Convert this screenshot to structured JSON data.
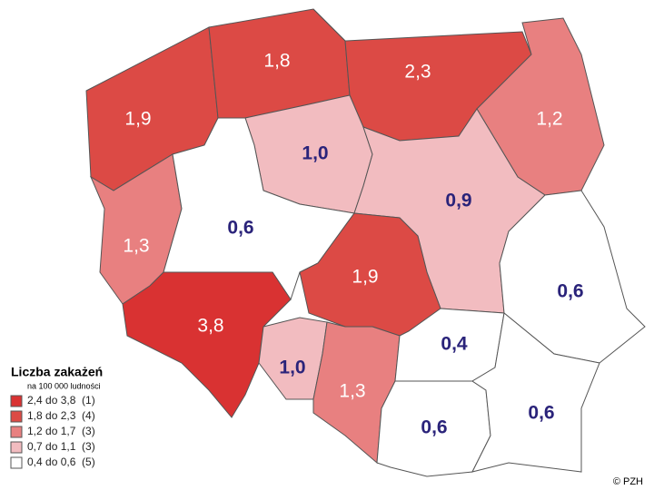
{
  "map": {
    "regions": [
      {
        "label": "1,9",
        "color": "#dc4a45"
      },
      {
        "label": "1,8",
        "color": "#dc4a45"
      },
      {
        "label": "2,3",
        "color": "#dc4a45"
      },
      {
        "label": "1,2",
        "color": "#e88080"
      },
      {
        "label": "1,0",
        "color": "#f2bcc0"
      },
      {
        "label": "0,9",
        "color": "#f2bcc0"
      },
      {
        "label": "1,3",
        "color": "#e88080"
      },
      {
        "label": "0,6",
        "color": "#ffffff"
      },
      {
        "label": "1,9",
        "color": "#dc4a45"
      },
      {
        "label": "0,6",
        "color": "#ffffff"
      },
      {
        "label": "3,8",
        "color": "#d93232"
      },
      {
        "label": "1,0",
        "color": "#f2bcc0"
      },
      {
        "label": "1,3",
        "color": "#e88080"
      },
      {
        "label": "0,4",
        "color": "#ffffff"
      },
      {
        "label": "0,6",
        "color": "#ffffff"
      },
      {
        "label": "0,6",
        "color": "#ffffff"
      }
    ],
    "legend": {
      "title": "Liczba zakażeń",
      "subtitle": "na 100 000 ludności",
      "items": [
        {
          "text": "2,4 do 3,8  (1)",
          "color": "#d93232"
        },
        {
          "text": "1,8 do 2,3  (4)",
          "color": "#dc4a45"
        },
        {
          "text": "1,2 do 1,7  (3)",
          "color": "#e88080"
        },
        {
          "text": "0,7 do 1,1  (3)",
          "color": "#f2bcc0"
        },
        {
          "text": "0,4 do 0,6  (5)",
          "color": "#ffffff"
        }
      ]
    },
    "copyright": "© PZH"
  }
}
